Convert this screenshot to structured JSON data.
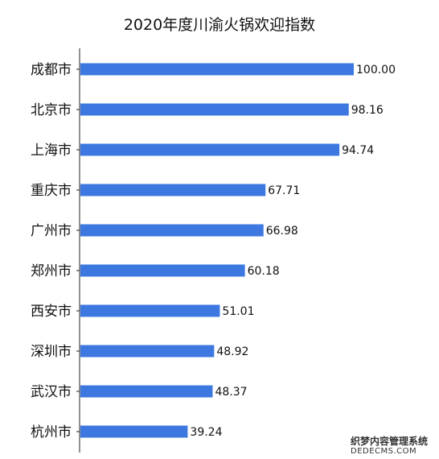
{
  "chart_data": {
    "type": "bar",
    "orientation": "horizontal",
    "title": "2020年度川渝火锅欢迎指数",
    "categories": [
      "成都市",
      "北京市",
      "上海市",
      "重庆市",
      "广州市",
      "郑州市",
      "西安市",
      "深圳市",
      "武汉市",
      "杭州市"
    ],
    "values": [
      100.0,
      98.16,
      94.74,
      67.71,
      66.98,
      60.18,
      51.01,
      48.92,
      48.37,
      39.24
    ],
    "value_labels": [
      "100.00",
      "98.16",
      "94.74",
      "67.71",
      "66.98",
      "60.18",
      "51.01",
      "48.92",
      "48.37",
      "39.24"
    ],
    "xlim": [
      0,
      100
    ],
    "xlabel": "",
    "ylabel": "",
    "grid": false,
    "legend": "none",
    "bar_color": "#3d78e0"
  },
  "watermark": {
    "top": "织梦内容管理系统",
    "bottom": "DEDECMS.COM"
  }
}
